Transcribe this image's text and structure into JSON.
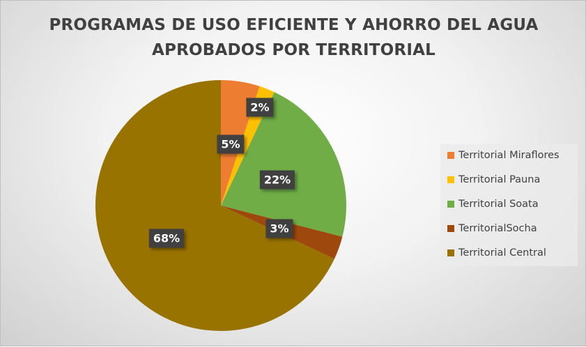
{
  "chart_data": {
    "type": "pie",
    "title_lines": [
      "PROGRAMAS DE USO EFICIENTE Y AHORRO DEL AGUA",
      "APROBADOS POR TERRITORIAL"
    ],
    "categories": [
      "Territorial Miraflores",
      "Territorial Pauna",
      "Territorial Soata",
      "TerritorialSocha",
      "Territorial Central"
    ],
    "values": [
      5,
      2,
      22,
      3,
      68
    ],
    "data_labels": [
      "5%",
      "2%",
      "22%",
      "3%",
      "68%"
    ],
    "colors": [
      "#ED7D31",
      "#FFC000",
      "#70AD47",
      "#9E480E",
      "#997300"
    ],
    "legend_position": "right"
  }
}
